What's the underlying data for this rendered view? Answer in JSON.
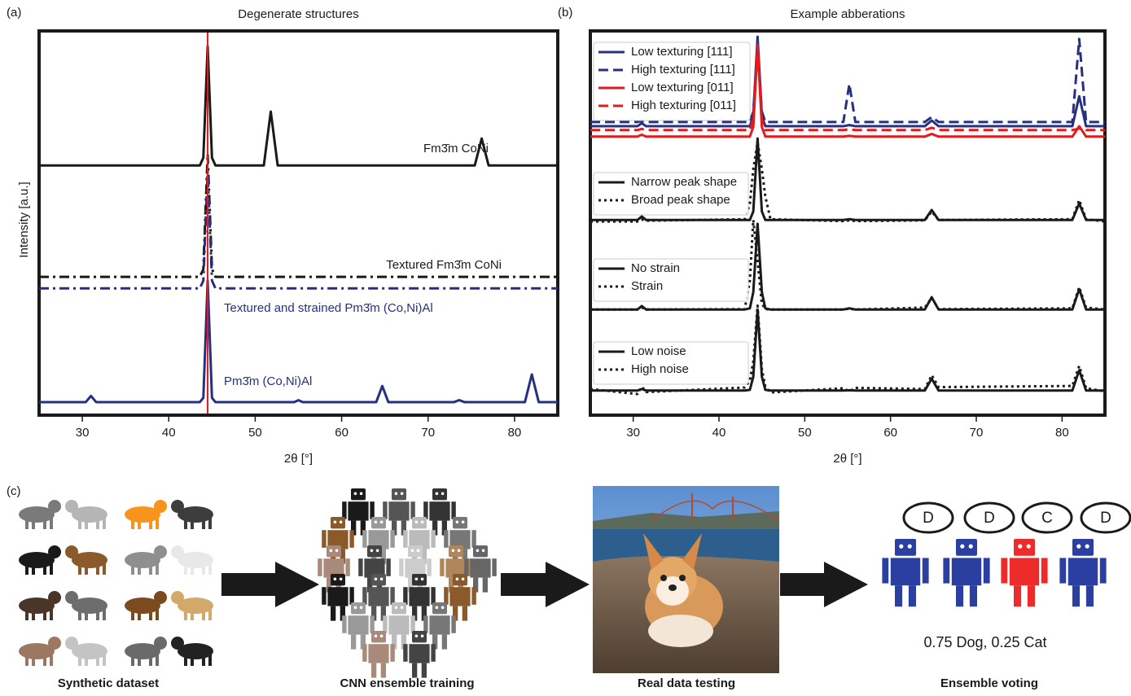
{
  "chart_data": [
    {
      "type": "line",
      "panel_label": "(a)",
      "title": "Degenerate structures",
      "xlabel": "2θ [°]",
      "ylabel": "Intensity [a.u.]",
      "xlim": [
        25,
        85
      ],
      "ylim": [
        0,
        100
      ],
      "xticks": [
        30,
        40,
        50,
        60,
        70,
        80
      ],
      "vline": {
        "x": 44.5,
        "color": "#e41a1c"
      },
      "x": [
        25,
        30.4,
        31,
        31.6,
        43.6,
        44,
        44.5,
        45,
        45.4,
        51,
        51.8,
        52.6,
        54.5,
        55,
        55.5,
        64,
        64.7,
        65.4,
        73,
        73.6,
        74.2,
        75.4,
        76.2,
        77,
        81.2,
        82,
        82.8,
        85
      ],
      "series": [
        {
          "name": "Fm3̄m CoNi",
          "color": "#1a1a1a",
          "style": "solid",
          "values": [
            65,
            65,
            65,
            65,
            65,
            67,
            96,
            67,
            65,
            65,
            79,
            65,
            65,
            65,
            65,
            65,
            65,
            65,
            65,
            65,
            65,
            65,
            72,
            65,
            65,
            65,
            65,
            65
          ]
        },
        {
          "name": "Textured Fm3̄m CoNi",
          "color": "#1a1a1a",
          "style": "dashdot",
          "values": [
            36,
            36,
            36,
            36,
            36,
            38,
            68,
            38,
            36,
            36,
            36,
            36,
            36,
            36,
            36,
            36,
            36,
            36,
            36,
            36,
            36,
            36,
            36,
            36,
            36,
            36,
            36,
            36
          ]
        },
        {
          "name": "Textured and strained Pm3̄m (Co,Ni)Al",
          "color": "#27307f",
          "style": "dashdot",
          "values": [
            33,
            33,
            33,
            33,
            33,
            35,
            63.5,
            35,
            33,
            33,
            33,
            33,
            33,
            33,
            33,
            33,
            33,
            33,
            33,
            33,
            33,
            33,
            33,
            33,
            33,
            33,
            33,
            33
          ]
        },
        {
          "name": "Pm3̄m (Co,Ni)Al",
          "color": "#27307f",
          "style": "solid",
          "values": [
            3.4,
            3.4,
            5,
            3.4,
            3.4,
            4.5,
            35,
            4.5,
            3.4,
            3.4,
            3.4,
            3.4,
            3.4,
            3.9,
            3.4,
            3.4,
            7.6,
            3.4,
            3.4,
            3.9,
            3.4,
            3.4,
            3.4,
            3.4,
            3.4,
            10.6,
            3.4,
            3.4
          ]
        }
      ]
    },
    {
      "type": "line",
      "panel_label": "(b)",
      "title": "Example abberations",
      "xlabel": "2θ [°]",
      "xlim": [
        25,
        85
      ],
      "ylim": [
        0,
        100
      ],
      "xticks": [
        30,
        40,
        50,
        60,
        70,
        80
      ],
      "x": [
        25,
        30.5,
        31,
        31.5,
        43,
        43.6,
        44,
        44.5,
        45,
        45.4,
        46,
        54.5,
        55.2,
        55.9,
        64,
        64.8,
        65.6,
        81.2,
        82,
        82.8,
        85
      ],
      "series": [
        {
          "name": "Low texturing [111]",
          "color": "#27307f",
          "style": "solid",
          "values": [
            75.2,
            75.2,
            76,
            75.2,
            75.2,
            75.2,
            78,
            98.5,
            78,
            75.2,
            75.2,
            75.2,
            75.5,
            75.2,
            75.2,
            76.7,
            75.2,
            75.2,
            83,
            75.2,
            75.2
          ]
        },
        {
          "name": "High texturing [111]",
          "color": "#27307f",
          "style": "dashed",
          "values": [
            76.3,
            76.3,
            76.6,
            76.3,
            76.3,
            76.3,
            79,
            95,
            79,
            76.3,
            76.3,
            76.3,
            86.2,
            76.3,
            76.3,
            77.6,
            76.3,
            76.3,
            97.9,
            76.3,
            76.3
          ]
        },
        {
          "name": "Low texturing [011]",
          "color": "#e41a1c",
          "style": "solid",
          "values": [
            72.5,
            72.5,
            73,
            72.5,
            72.5,
            72.5,
            75,
            96.4,
            75,
            72.5,
            72.5,
            72.5,
            72.7,
            72.5,
            72.5,
            73.2,
            72.5,
            72.5,
            75.2,
            72.5,
            72.5
          ]
        },
        {
          "name": "High texturing [011]",
          "color": "#e41a1c",
          "style": "dashed",
          "values": [
            74.2,
            74.2,
            74.5,
            74.2,
            74.2,
            74.2,
            77,
            95.3,
            77,
            74.2,
            74.2,
            74.2,
            74.4,
            74.2,
            74.2,
            74.8,
            74.2,
            74.2,
            74.6,
            74.2,
            74.2
          ]
        },
        {
          "name": "Narrow peak shape",
          "color": "#1a1a1a",
          "style": "solid",
          "values": [
            50.8,
            50.8,
            51.7,
            50.8,
            50.8,
            50.8,
            53,
            72,
            53,
            50.8,
            50.8,
            50.8,
            51,
            50.8,
            50.8,
            53.4,
            50.8,
            50.8,
            55.1,
            50.8,
            50.8
          ]
        },
        {
          "name": "Broad peak shape",
          "color": "#1a1a1a",
          "style": "dotted",
          "values": [
            50.4,
            50.4,
            50.9,
            50.6,
            51,
            55,
            64,
            71,
            64,
            57,
            51,
            50.5,
            50.7,
            50.5,
            50.7,
            53,
            50.8,
            51,
            56,
            51,
            50.4
          ]
        },
        {
          "name": "No strain",
          "color": "#1a1a1a",
          "style": "solid",
          "values": [
            27.5,
            27.5,
            28.4,
            27.5,
            27.5,
            27.8,
            32,
            49.8,
            32,
            27.8,
            27.5,
            27.5,
            27.8,
            27.5,
            27.5,
            30.7,
            27.5,
            27.5,
            32.8,
            27.5,
            27.5
          ]
        },
        {
          "name": "Strain",
          "color": "#1a1a1a",
          "style": "dotted",
          "values": [
            27.5,
            27.5,
            28,
            27.5,
            27.6,
            35,
            50.8,
            40,
            29,
            27.6,
            27.5,
            27.5,
            27.7,
            27.5,
            28,
            30.5,
            27.6,
            27.8,
            33.3,
            28,
            27.5
          ]
        },
        {
          "name": "Low noise",
          "color": "#1a1a1a",
          "style": "solid",
          "values": [
            6.4,
            6.4,
            6.8,
            6.4,
            6.4,
            6.6,
            10,
            27.5,
            10,
            6.6,
            6.4,
            6.4,
            6.5,
            6.4,
            6.4,
            9.5,
            6.4,
            6.4,
            11.7,
            6.4,
            6.4
          ]
        },
        {
          "name": "High noise",
          "color": "#1a1a1a",
          "style": "dotted",
          "values": [
            6.8,
            5.5,
            7.4,
            6,
            7.2,
            9,
            14,
            28.5,
            12,
            7.5,
            5.9,
            7,
            6.2,
            7.1,
            6.8,
            10.4,
            7.3,
            7.6,
            12.8,
            7,
            6.2
          ]
        }
      ]
    }
  ],
  "panel_c": {
    "label": "(c)",
    "captions": [
      "Synthetic dataset",
      "CNN ensemble training",
      "Real data testing",
      "Ensemble voting"
    ],
    "votes": [
      "D",
      "D",
      "C",
      "D"
    ],
    "result": "0.75 Dog, 0.25 Cat"
  }
}
